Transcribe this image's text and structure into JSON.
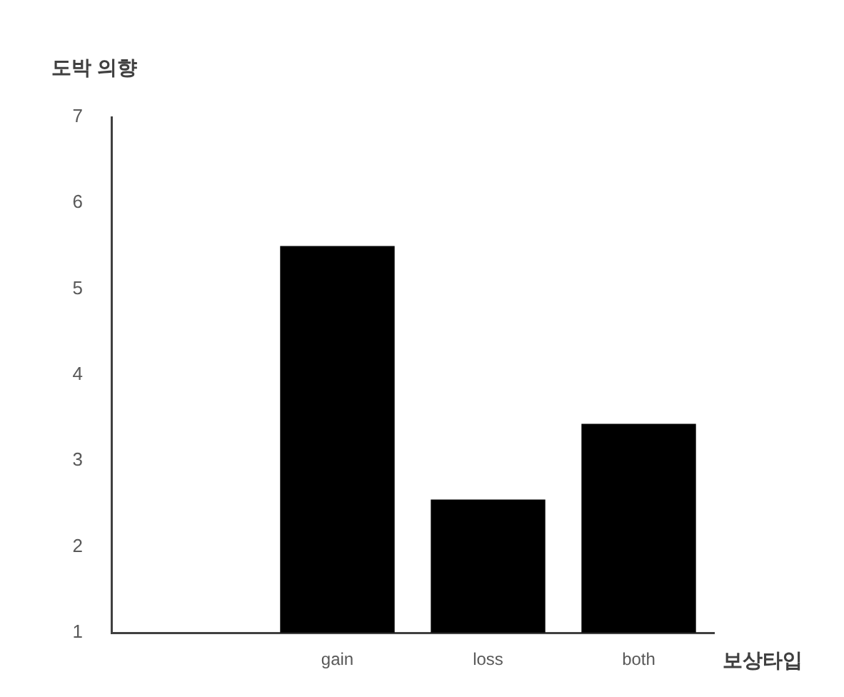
{
  "chart_data": {
    "type": "bar",
    "xlabel": "보상타입",
    "ylabel": "도박 의향",
    "categories": [
      null,
      "gain",
      "loss",
      "both"
    ],
    "values": [
      null,
      5.5,
      2.55,
      3.43
    ],
    "color": "#000000",
    "ylim": [
      1,
      7
    ],
    "yticks": [
      1,
      2,
      3,
      4,
      5,
      6,
      7
    ],
    "grid": false,
    "legend": false
  }
}
